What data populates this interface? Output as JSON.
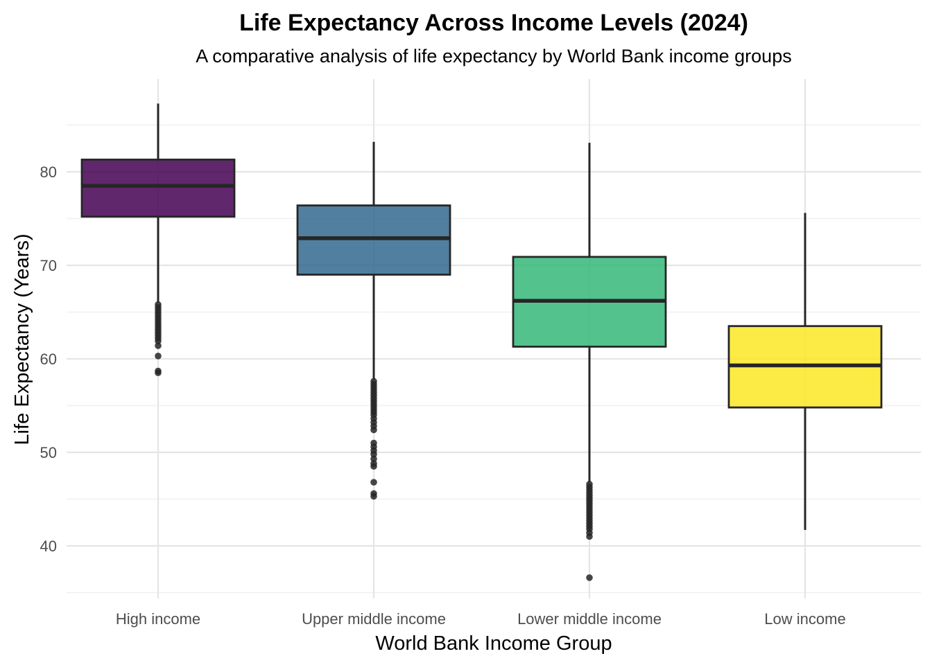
{
  "chart_data": {
    "type": "box",
    "title": "Life Expectancy Across Income Levels (2024)",
    "subtitle": "A comparative analysis of life expectancy by World Bank income groups",
    "xlabel": "World Bank Income Group",
    "ylabel": "Life Expectancy (Years)",
    "ylim": [
      35,
      90
    ],
    "yticks": [
      40,
      50,
      60,
      70,
      80
    ],
    "grid": true,
    "legend": "none",
    "categories": [
      "High income",
      "Upper middle income",
      "Lower middle income",
      "Low income"
    ],
    "series": [
      {
        "category": "High income",
        "color": "#440154",
        "min": 58.5,
        "q1": 75.2,
        "median": 78.5,
        "q3": 81.3,
        "max": 87.3,
        "whisker_low": 66.0,
        "outliers": [
          65.8,
          65.5,
          65.2,
          64.9,
          64.6,
          64.3,
          64.0,
          63.7,
          63.4,
          63.1,
          62.8,
          62.5,
          62.2,
          61.9,
          61.4,
          60.3,
          58.7,
          58.5
        ]
      },
      {
        "category": "Upper middle income",
        "color": "#31688e",
        "min": 45.3,
        "q1": 69.0,
        "median": 72.9,
        "q3": 76.4,
        "max": 83.2,
        "whisker_low": 57.8,
        "outliers": [
          57.6,
          57.3,
          57.0,
          56.7,
          56.4,
          56.1,
          55.8,
          55.5,
          55.2,
          54.9,
          54.6,
          54.3,
          54.0,
          53.6,
          53.2,
          52.8,
          52.4,
          51.0,
          50.6,
          50.2,
          49.8,
          49.3,
          48.8,
          48.5,
          46.8,
          45.6,
          45.3
        ]
      },
      {
        "category": "Lower middle income",
        "color": "#35b779",
        "min": 36.6,
        "q1": 61.3,
        "median": 66.2,
        "q3": 70.9,
        "max": 83.1,
        "whisker_low": 46.8,
        "outliers": [
          46.6,
          46.3,
          46.0,
          45.7,
          45.4,
          45.1,
          44.8,
          44.5,
          44.2,
          43.9,
          43.6,
          43.3,
          43.0,
          42.7,
          42.4,
          42.1,
          41.8,
          41.4,
          41.0,
          36.6
        ]
      },
      {
        "category": "Low income",
        "color": "#fde725",
        "min": 41.7,
        "q1": 54.8,
        "median": 59.3,
        "q3": 63.5,
        "max": 75.6,
        "whisker_low": 41.7,
        "outliers": []
      }
    ]
  }
}
